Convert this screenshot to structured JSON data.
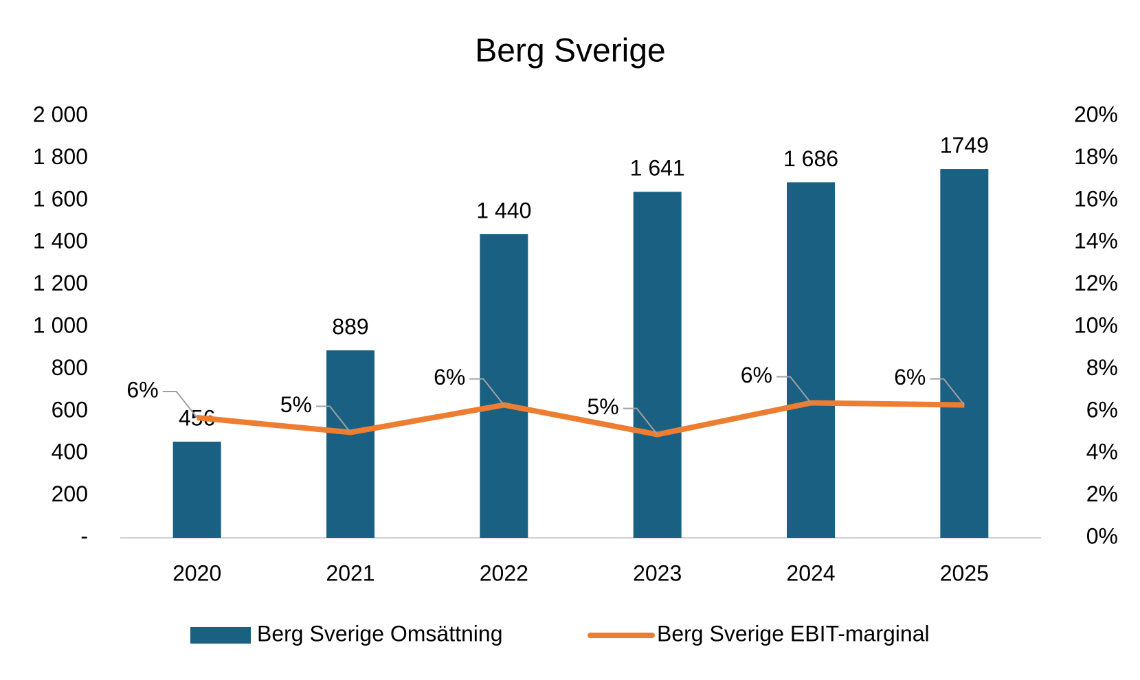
{
  "chart_data": {
    "type": "bar-line",
    "title": "Berg Sverige",
    "categories": [
      "2020",
      "2021",
      "2022",
      "2023",
      "2024",
      "2025"
    ],
    "series": [
      {
        "name": "Berg Sverige Omsättning",
        "type": "bar",
        "color": "#1a6082",
        "values": [
          456,
          889,
          1440,
          1641,
          1686,
          1749
        ],
        "value_labels": [
          "456",
          "889",
          "1 440",
          "1 641",
          "1 686",
          "1749"
        ]
      },
      {
        "name": "Berg Sverige EBIT-marginal",
        "type": "line",
        "axis": "y2",
        "color": "#ed7d31",
        "values": [
          5.7,
          5.0,
          6.3,
          4.9,
          6.4,
          6.3
        ],
        "value_labels": [
          "6%",
          "5%",
          "6%",
          "5%",
          "6%",
          "6%"
        ]
      }
    ],
    "ylim": [
      0,
      2000
    ],
    "yticks": [
      {
        "value": 0,
        "label": "-"
      },
      200,
      400,
      600,
      800,
      {
        "value": 1000,
        "label": "1 000"
      },
      {
        "value": 1200,
        "label": "1 200"
      },
      {
        "value": 1400,
        "label": "1 400"
      },
      {
        "value": 1600,
        "label": "1 600"
      },
      {
        "value": 1800,
        "label": "1 800"
      },
      {
        "value": 2000,
        "label": "2 000"
      }
    ],
    "y2lim": [
      0,
      20
    ],
    "y2ticks": [
      {
        "value": 0,
        "label": "0%"
      },
      {
        "value": 2,
        "label": "2%"
      },
      {
        "value": 4,
        "label": "4%"
      },
      {
        "value": 6,
        "label": "6%"
      },
      {
        "value": 8,
        "label": "8%"
      },
      {
        "value": 10,
        "label": "10%"
      },
      {
        "value": 12,
        "label": "12%"
      },
      {
        "value": 14,
        "label": "14%"
      },
      {
        "value": 16,
        "label": "16%"
      },
      {
        "value": 18,
        "label": "18%"
      },
      {
        "value": 20,
        "label": "20%"
      }
    ],
    "grid": false,
    "legend": "bottom"
  }
}
